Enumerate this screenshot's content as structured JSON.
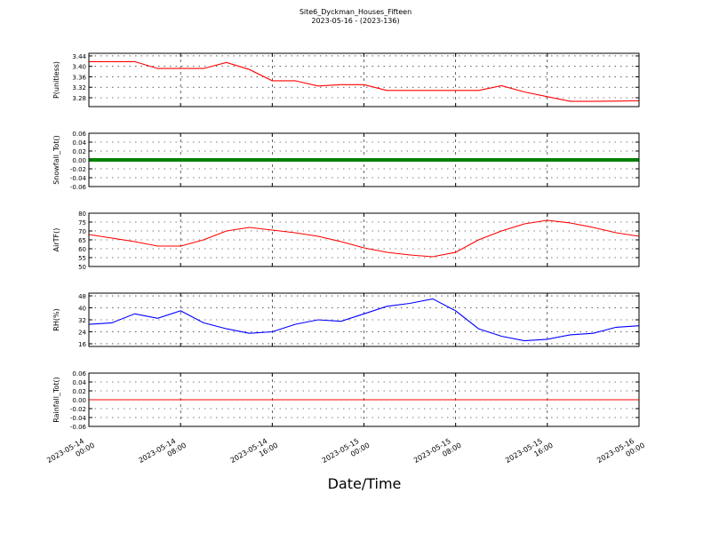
{
  "chart_data": {
    "type": "line",
    "title": "Site6_Dyckman_Houses_Fifteen",
    "subtitle": "2023-05-16 - (2023-136)",
    "xlabel": "Date/Time",
    "x": [
      "2023-05-14 00:00",
      "2023-05-14 02:00",
      "2023-05-14 04:00",
      "2023-05-14 06:00",
      "2023-05-14 08:00",
      "2023-05-14 10:00",
      "2023-05-14 12:00",
      "2023-05-14 14:00",
      "2023-05-14 16:00",
      "2023-05-14 18:00",
      "2023-05-14 20:00",
      "2023-05-14 22:00",
      "2023-05-15 00:00",
      "2023-05-15 02:00",
      "2023-05-15 04:00",
      "2023-05-15 06:00",
      "2023-05-15 08:00",
      "2023-05-15 10:00",
      "2023-05-15 12:00",
      "2023-05-15 14:00",
      "2023-05-15 16:00",
      "2023-05-15 18:00",
      "2023-05-15 20:00",
      "2023-05-15 22:00",
      "2023-05-16 00:00"
    ],
    "xlim": [
      "2023-05-14 00:00",
      "2023-05-16 00:00"
    ],
    "xticks": [
      "2023-05-14 00:00",
      "2023-05-14 08:00",
      "2023-05-14 16:00",
      "2023-05-15 00:00",
      "2023-05-15 08:00",
      "2023-05-15 16:00",
      "2023-05-16 00:00"
    ],
    "grid": true,
    "panels": [
      {
        "ylabel": "P(unitless)",
        "ylim": [
          3.246,
          3.45
        ],
        "yticks": [
          {
            "value": 3.28,
            "label": "3.28"
          },
          {
            "value": 3.32,
            "label": "3.32"
          },
          3.36,
          {
            "value": 3.4,
            "label": "3.40"
          },
          3.44
        ],
        "series": [
          {
            "color": "#ff0000",
            "values": [
              3.418,
              3.418,
              3.418,
              3.392,
              3.392,
              3.392,
              3.415,
              3.388,
              3.345,
              3.345,
              3.325,
              3.33,
              3.33,
              3.308,
              3.308,
              3.308,
              3.308,
              3.308,
              3.326,
              3.302,
              3.284,
              3.266,
              3.266,
              3.267,
              3.268
            ]
          }
        ]
      },
      {
        "ylabel": "Snowfall_Tot()",
        "ylim": [
          -0.06,
          0.06
        ],
        "yticks": [
          -0.06,
          -0.04,
          -0.02,
          {
            "value": 0,
            "label": "0.00"
          },
          0.02,
          0.04,
          0.06
        ],
        "series": [
          {
            "color": "#008000",
            "values": [
              0,
              0,
              0,
              0,
              0,
              0,
              0,
              0,
              0,
              0,
              0,
              0,
              0,
              0,
              0,
              0,
              0,
              0,
              0,
              0,
              0,
              0,
              0,
              0,
              0
            ]
          }
        ]
      },
      {
        "ylabel": "AirTF()",
        "ylim": [
          50,
          80
        ],
        "yticks": [
          50,
          55,
          60,
          65,
          70,
          75,
          80
        ],
        "series": [
          {
            "color": "#ff0000",
            "values": [
              68,
              66,
              64,
              61.5,
              61.5,
              65,
              70,
              72,
              70.5,
              69,
              67,
              64,
              60.5,
              58,
              56.5,
              55.5,
              58,
              65,
              70,
              74,
              76,
              74.5,
              72,
              69,
              67
            ]
          }
        ]
      },
      {
        "ylabel": "RH(%)",
        "ylim": [
          14.2,
          49.8
        ],
        "yticks": [
          16,
          24,
          32,
          40,
          48
        ],
        "series": [
          {
            "color": "#0000ff",
            "values": [
              29,
              30,
              36,
              33,
              38,
              30,
              26,
              23,
              24,
              29,
              32,
              31,
              36,
              41,
              43,
              46,
              38,
              26,
              21,
              18,
              19,
              22,
              23,
              27,
              28
            ]
          }
        ]
      },
      {
        "ylabel": "Rainfall_Tot()",
        "ylim": [
          -0.06,
          0.06
        ],
        "yticks": [
          -0.06,
          -0.04,
          -0.02,
          {
            "value": 0,
            "label": "0.00"
          },
          0.02,
          0.04,
          0.06
        ],
        "series": [
          {
            "color": "#ff0000",
            "values": [
              0,
              0,
              0,
              0,
              0,
              0,
              0,
              0,
              0,
              0,
              0,
              0,
              0,
              0,
              0,
              0,
              0,
              0,
              0,
              0,
              0,
              0,
              0,
              0,
              0
            ]
          }
        ]
      }
    ]
  }
}
